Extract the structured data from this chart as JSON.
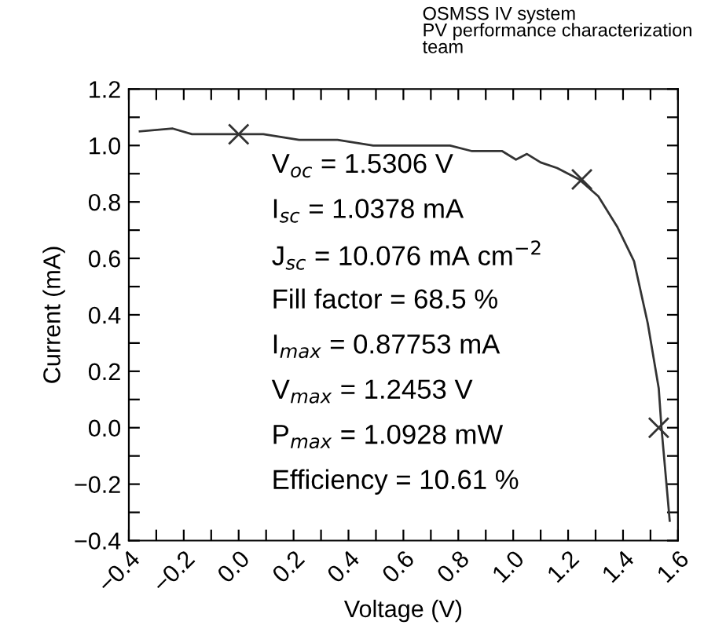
{
  "chart_data": {
    "type": "line",
    "xlabel": "Voltage (V)",
    "ylabel": "Current (mA)",
    "xlim": [
      -0.4,
      1.6
    ],
    "ylim": [
      -0.4,
      1.2
    ],
    "xticks": [
      {
        "value": -0.4,
        "label": "−0.4"
      },
      {
        "value": -0.3,
        "label": null
      },
      {
        "value": -0.2,
        "label": "−0.2"
      },
      {
        "value": -0.1,
        "label": null
      },
      {
        "value": 0,
        "label": "0.0"
      },
      {
        "value": 0.1,
        "label": null
      },
      {
        "value": 0.2,
        "label": "0.2"
      },
      {
        "value": 0.3,
        "label": null
      },
      {
        "value": 0.4,
        "label": "0.4"
      },
      {
        "value": 0.5,
        "label": null
      },
      {
        "value": 0.6,
        "label": "0.6"
      },
      {
        "value": 0.7,
        "label": null
      },
      {
        "value": 0.8,
        "label": "0.8"
      },
      {
        "value": 0.9,
        "label": null
      },
      {
        "value": 1.0,
        "label": "1.0"
      },
      {
        "value": 1.1,
        "label": null
      },
      {
        "value": 1.2,
        "label": "1.2"
      },
      {
        "value": 1.3,
        "label": null
      },
      {
        "value": 1.4,
        "label": "1.4"
      },
      {
        "value": 1.5,
        "label": null
      },
      {
        "value": 1.6,
        "label": "1.6"
      }
    ],
    "yticks": [
      {
        "value": -0.4,
        "label": "−0.4"
      },
      {
        "value": -0.3,
        "label": null
      },
      {
        "value": -0.2,
        "label": "−0.2"
      },
      {
        "value": -0.1,
        "label": null
      },
      {
        "value": 0,
        "label": "0.0"
      },
      {
        "value": 0.1,
        "label": null
      },
      {
        "value": 0.2,
        "label": "0.2"
      },
      {
        "value": 0.3,
        "label": null
      },
      {
        "value": 0.4,
        "label": "0.4"
      },
      {
        "value": 0.5,
        "label": null
      },
      {
        "value": 0.6,
        "label": "0.6"
      },
      {
        "value": 0.7,
        "label": null
      },
      {
        "value": 0.8,
        "label": "0.8"
      },
      {
        "value": 0.9,
        "label": null
      },
      {
        "value": 1.0,
        "label": "1.0"
      },
      {
        "value": 1.1,
        "label": null
      },
      {
        "value": 1.2,
        "label": "1.2"
      }
    ],
    "grid": false,
    "legend": false,
    "series": [
      {
        "color": "#333333",
        "marker": "none",
        "line_style": "solid",
        "x": [
          -0.36,
          -0.24,
          -0.17,
          0,
          0.09,
          0.22,
          0.36,
          0.49,
          0.66,
          0.77,
          0.85,
          0.96,
          1.01,
          1.05,
          1.1,
          1.16,
          1.24,
          1.31,
          1.38,
          1.44,
          1.49,
          1.53,
          1.54,
          1.57
        ],
        "values": [
          1.05,
          1.06,
          1.04,
          1.04,
          1.04,
          1.02,
          1.02,
          1.0,
          1.0,
          1.0,
          0.98,
          0.98,
          0.95,
          0.97,
          0.94,
          0.92,
          0.88,
          0.82,
          0.71,
          0.59,
          0.37,
          0.14,
          0,
          -0.33
        ]
      },
      {
        "type": "scatter",
        "color": "#333333",
        "marker": "cross",
        "x": [
          0,
          1.25,
          1.53
        ],
        "values": [
          1.04,
          0.88,
          0
        ]
      }
    ],
    "annotations": [
      "OSMSS IV system\nPV performance characterization\nteam",
      "V$_{oc}$ = 1.5306 V",
      "I$_{sc}$ = 1.0378 mA",
      "J$_{sc}$ = 10.076 mA cm$^{−2}$",
      "Fill factor = 68.5 %",
      "I$_{max}$ = 0.87753 mA",
      "V$_{max}$ = 1.2453 V",
      "P$_{max}$ = 1.0928 mW",
      "Efficiency = 10.61 %"
    ]
  }
}
